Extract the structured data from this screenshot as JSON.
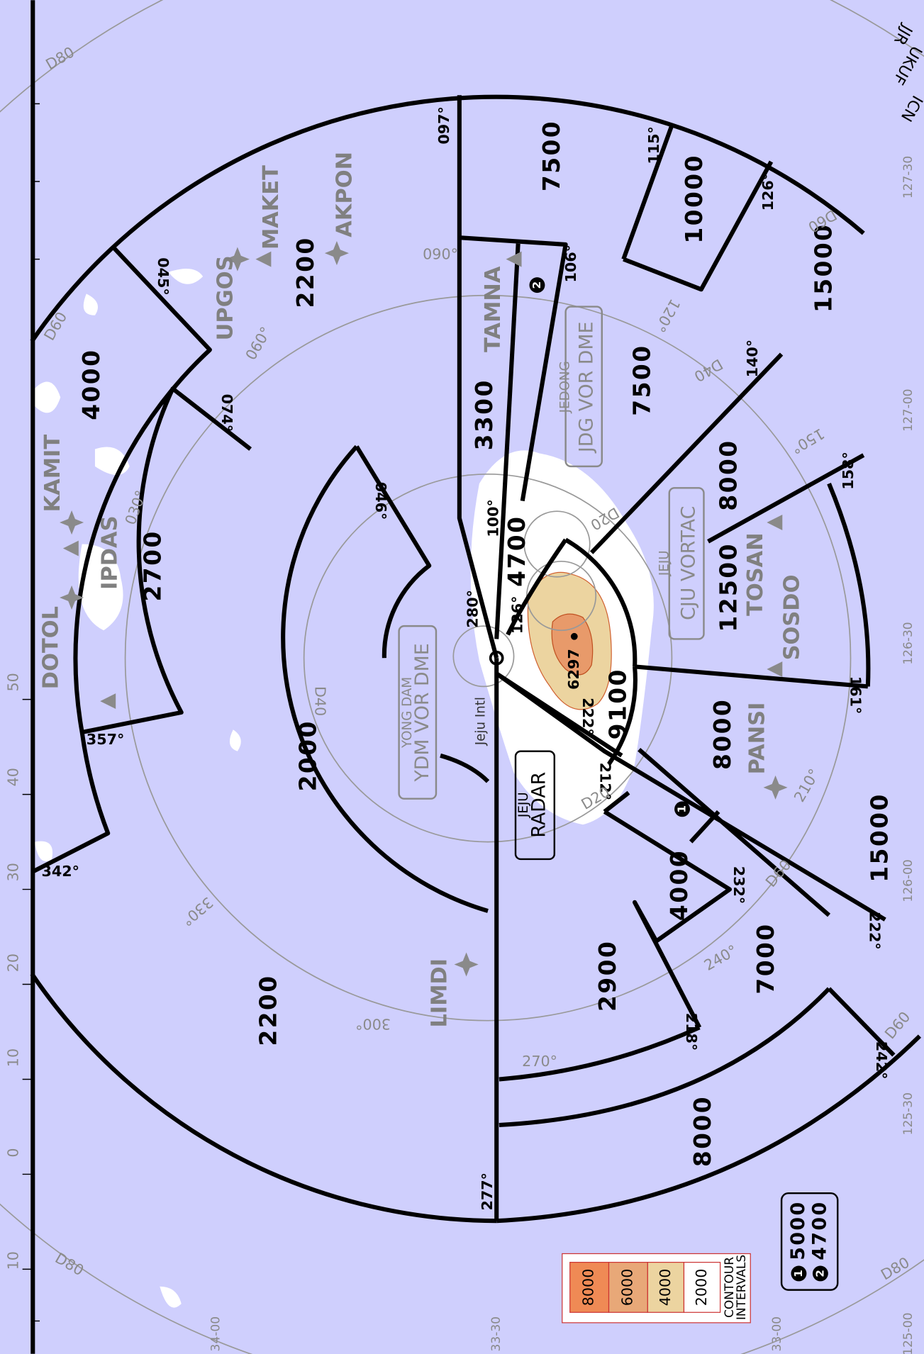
{
  "sectors": [
    "7500",
    "10000",
    "15000",
    "7500",
    "8000",
    "12500",
    "8000",
    "15000",
    "7000",
    "8000",
    "2900",
    "4000",
    "9100",
    "4700",
    "3300",
    "2200",
    "4000",
    "2700",
    "2000",
    "2200"
  ],
  "fixes": [
    "MAKET",
    "AKPON",
    "UPGOS",
    "KAMIT",
    "IPDAS",
    "DOTOL",
    "TAMNA",
    "TOSAN",
    "SOSDO",
    "PANSI",
    "LIMDI"
  ],
  "navaids": [
    {
      "name": "JEDONG",
      "ident": "JDG VOR DME"
    },
    {
      "name": "JEJU",
      "ident": "CJU VORTAC"
    },
    {
      "name": "YONG DAM",
      "ident": "YDM VOR DME"
    },
    {
      "name": "JEJU",
      "ident": "RADAR"
    }
  ],
  "airport": "Jeju Intl",
  "elevation": "6297",
  "bearings": [
    "097°",
    "115°",
    "126°",
    "106°",
    "140°",
    "158°",
    "161°",
    "100°",
    "126°",
    "280°",
    "046°",
    "074°",
    "045°",
    "357°",
    "342°",
    "277°",
    "212°",
    "232°",
    "222°",
    "218°",
    "242°",
    "222°"
  ],
  "rose_labels": [
    "090°",
    "060°",
    "030°",
    "120°",
    "150°",
    "210°",
    "240°",
    "270°",
    "300°",
    "330°"
  ],
  "distance_labels": [
    "D20",
    "D40",
    "D60",
    "D60",
    "D60",
    "D80",
    "D80",
    "D80",
    "D20",
    "D40",
    "D60"
  ],
  "grid_labels": {
    "left": [
      "50",
      "40",
      "30",
      "20",
      "10",
      "0",
      "10"
    ],
    "right": [
      "127-30",
      "127-00",
      "126-30",
      "126-00",
      "125-30",
      "125-00"
    ],
    "bottom": [
      "34-00",
      "33-30",
      "33-00"
    ]
  },
  "edge_texts": [
    "ICN",
    "UKUF",
    "JJR"
  ],
  "contour_legend": {
    "levels": [
      "8000",
      "6000",
      "4000",
      "2000"
    ],
    "title": [
      "CONTOUR",
      "INTERVALS"
    ]
  },
  "notes": [
    {
      "mark": "1",
      "altitude": "5000"
    },
    {
      "mark": "2",
      "altitude": "4700"
    }
  ]
}
